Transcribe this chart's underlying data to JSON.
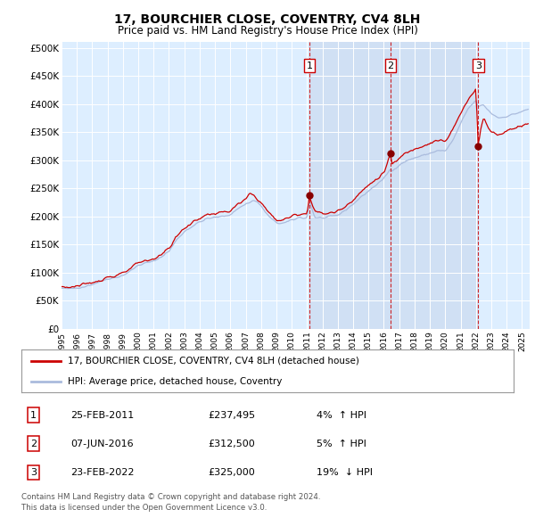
{
  "title": "17, BOURCHIER CLOSE, COVENTRY, CV4 8LH",
  "subtitle": "Price paid vs. HM Land Registry's House Price Index (HPI)",
  "ylabel_ticks": [
    "£0",
    "£50K",
    "£100K",
    "£150K",
    "£200K",
    "£250K",
    "£300K",
    "£350K",
    "£400K",
    "£450K",
    "£500K"
  ],
  "ytick_values": [
    0,
    50000,
    100000,
    150000,
    200000,
    250000,
    300000,
    350000,
    400000,
    450000,
    500000
  ],
  "ylim": [
    0,
    510000
  ],
  "xlim_start": 1995.0,
  "xlim_end": 2025.5,
  "hpi_color": "#aabbdd",
  "price_color": "#cc0000",
  "sale_marker_color": "#880000",
  "dashed_line_color": "#cc0000",
  "background_color": "#ddeeff",
  "shade_color": "#ddeeff",
  "legend_label_price": "17, BOURCHIER CLOSE, COVENTRY, CV4 8LH (detached house)",
  "legend_label_hpi": "HPI: Average price, detached house, Coventry",
  "sales": [
    {
      "num": 1,
      "date": "25-FEB-2011",
      "price": 237495,
      "pct": "4%",
      "dir": "↑",
      "x": 2011.15
    },
    {
      "num": 2,
      "date": "07-JUN-2016",
      "price": 312500,
      "pct": "5%",
      "dir": "↑",
      "x": 2016.44
    },
    {
      "num": 3,
      "date": "23-FEB-2022",
      "price": 325000,
      "pct": "19%",
      "dir": "↓",
      "x": 2022.15
    }
  ],
  "footer_line1": "Contains HM Land Registry data © Crown copyright and database right 2024.",
  "footer_line2": "This data is licensed under the Open Government Licence v3.0."
}
